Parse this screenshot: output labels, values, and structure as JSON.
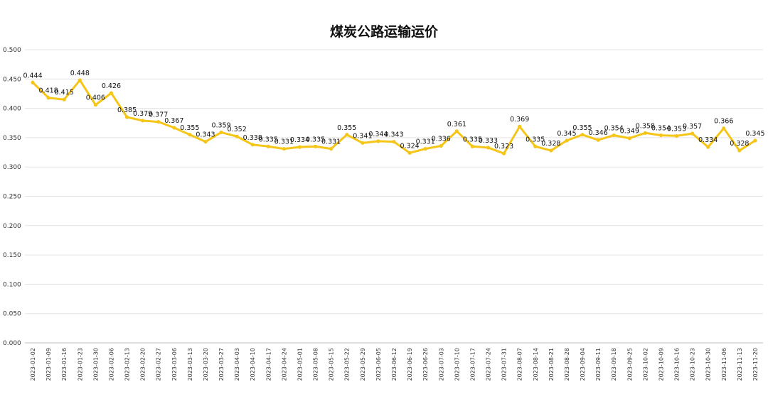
{
  "chart_data": {
    "type": "line",
    "title": "煤炭公路运输运价",
    "xlabel": "",
    "ylabel": "",
    "ylim": [
      0,
      0.5
    ],
    "yticks": [
      "0.000",
      "0.050",
      "0.100",
      "0.150",
      "0.200",
      "0.250",
      "0.300",
      "0.350",
      "0.400",
      "0.450",
      "0.500"
    ],
    "grid": true,
    "legend": "none",
    "color": "#f5c518",
    "x": [
      "2023-01-02",
      "2023-01-09",
      "2023-01-16",
      "2023-01-23",
      "2023-01-30",
      "2023-02-06",
      "2023-02-13",
      "2023-02-20",
      "2023-02-27",
      "2023-03-06",
      "2023-03-13",
      "2023-03-20",
      "2023-03-27",
      "2023-04-03",
      "2023-04-10",
      "2023-04-17",
      "2023-04-24",
      "2023-05-01",
      "2023-05-08",
      "2023-05-15",
      "2023-05-22",
      "2023-05-29",
      "2023-06-05",
      "2023-06-12",
      "2023-06-19",
      "2023-06-26",
      "2023-07-03",
      "2023-07-10",
      "2023-07-17",
      "2023-07-24",
      "2023-07-31",
      "2023-08-07",
      "2023-08-14",
      "2023-08-21",
      "2023-08-28",
      "2023-09-04",
      "2023-09-11",
      "2023-09-18",
      "2023-09-25",
      "2023-10-02",
      "2023-10-09",
      "2023-10-16",
      "2023-10-23",
      "2023-10-30",
      "2023-11-06",
      "2023-11-13",
      "2023-11-20"
    ],
    "series": [
      {
        "values": [
          0.444,
          0.418,
          0.415,
          0.448,
          0.406,
          0.426,
          0.385,
          0.379,
          0.377,
          0.367,
          0.355,
          0.343,
          0.359,
          0.352,
          0.338,
          0.335,
          0.331,
          0.334,
          0.335,
          0.331,
          0.355,
          0.341,
          0.344,
          0.343,
          0.324,
          0.331,
          0.336,
          0.361,
          0.335,
          0.333,
          0.323,
          0.369,
          0.335,
          0.328,
          0.345,
          0.355,
          0.346,
          0.354,
          0.349,
          0.358,
          0.354,
          0.353,
          0.357,
          0.334,
          0.366,
          0.328,
          0.345
        ],
        "labels": [
          "0.444",
          "0.418",
          "0.415",
          "0.448",
          "0.406",
          "0.426",
          "0.385",
          "0.379",
          "0.377",
          "0.367",
          "0.355",
          "0.343",
          "0.359",
          "0.352",
          "0.338",
          "0.335",
          "0.331",
          "0.334",
          "0.335",
          "0.331",
          "0.355",
          "0.341",
          "0.344",
          "0.343",
          "0.324",
          "0.331",
          "0.336",
          "0.361",
          "0.335",
          "0.333",
          "0.323",
          "0.369",
          "0.335",
          "0.328",
          "0.345",
          "0.355",
          "0.346",
          "0.354",
          "0.349",
          "0.358",
          "0.354",
          "0.353",
          "0.357",
          "0.334",
          "0.366",
          "0.328",
          "0.345"
        ]
      }
    ]
  }
}
